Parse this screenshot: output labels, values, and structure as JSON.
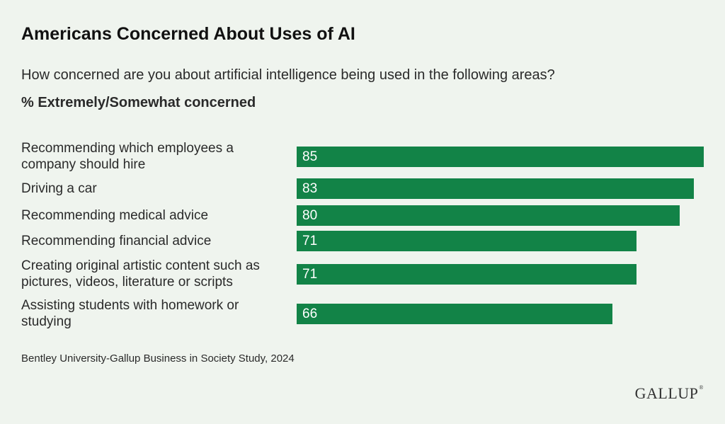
{
  "title": "Americans Concerned About Uses of AI",
  "subtitle": "How concerned are you about artificial intelligence being used in the following areas?",
  "measure_label": "% Extremely/Somewhat concerned",
  "source": "Bentley University-Gallup Business in Society Study, 2024",
  "logo": "GALLUP",
  "colors": {
    "bar": "#128347",
    "background": "#eff4ee"
  },
  "chart_data": {
    "type": "bar",
    "orientation": "horizontal",
    "title": "Americans Concerned About Uses of AI",
    "subtitle": "How concerned are you about artificial intelligence being used in the following areas?",
    "categories": [
      "Recommending which employees a company should hire",
      "Driving a car",
      "Recommending medical advice",
      "Recommending financial advice",
      "Creating original artistic content such as pictures, videos, literature or scripts",
      "Assisting students with homework or studying"
    ],
    "series": [
      {
        "name": "% Extremely/Somewhat concerned",
        "values": [
          85,
          83,
          80,
          71,
          71,
          66
        ]
      }
    ],
    "xlim": [
      0,
      85
    ],
    "grid": false,
    "legend": "none"
  }
}
